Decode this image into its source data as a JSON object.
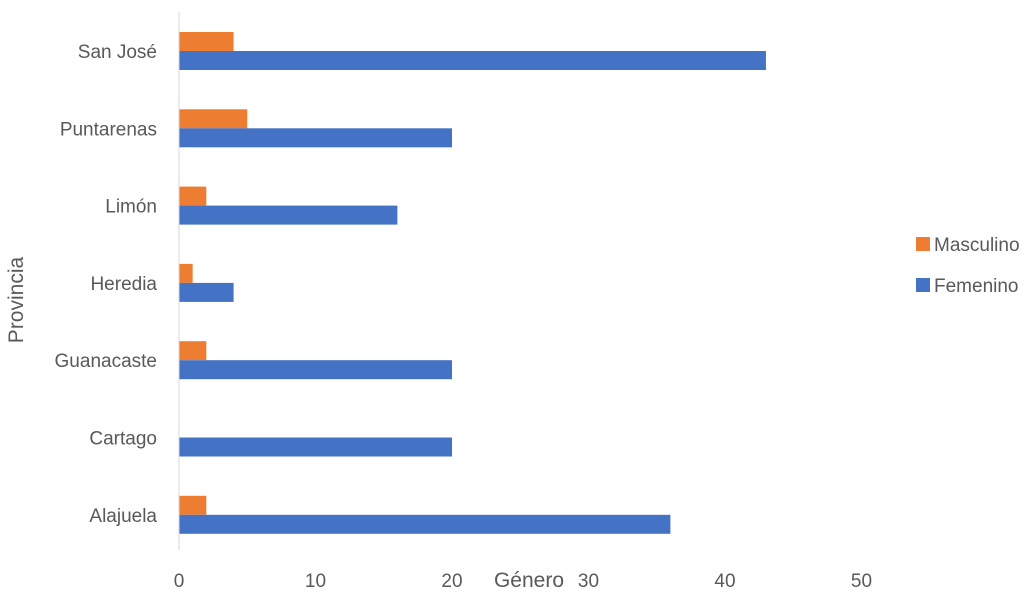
{
  "chart_data": {
    "type": "bar",
    "orientation": "horizontal",
    "categories": [
      "San José",
      "Puntarenas",
      "Limón",
      "Heredia",
      "Guanacaste",
      "Cartago",
      "Alajuela"
    ],
    "series": [
      {
        "name": "Masculino",
        "color": "#ED7D31",
        "values": [
          4,
          5,
          2,
          1,
          2,
          0,
          2
        ]
      },
      {
        "name": "Femenino",
        "color": "#4472C4",
        "values": [
          43,
          20,
          16,
          4,
          20,
          20,
          36
        ]
      }
    ],
    "xlabel": "Género",
    "ylabel": "Provincia",
    "xlim": [
      0,
      50
    ],
    "xticks": [
      0,
      10,
      20,
      30,
      40,
      50
    ],
    "grid": false,
    "legend_position": "right"
  }
}
